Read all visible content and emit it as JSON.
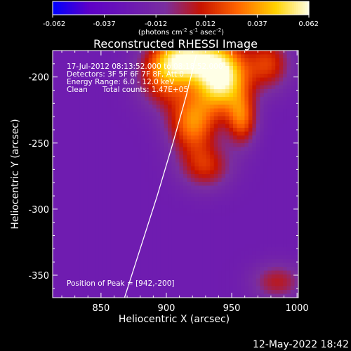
{
  "chart_data": {
    "type": "heatmap",
    "title": "Reconstructed RHESSI Image",
    "xlabel": "Heliocentric X (arcsec)",
    "ylabel": "Heliocentric Y (arcsec)",
    "xlim": [
      813,
      1001
    ],
    "ylim": [
      -367,
      -180
    ],
    "x_ticks": [
      850,
      900,
      950,
      1000
    ],
    "y_ticks": [
      -200,
      -250,
      -300,
      -350
    ],
    "grid": false,
    "colorbar": {
      "min": -0.062,
      "max": 0.062,
      "ticks": [
        "-0.062",
        "-0.037",
        "-0.012",
        "0.012",
        "0.037",
        "0.062"
      ],
      "tick_values": [
        -0.062,
        -0.037,
        -0.012,
        0.012,
        0.037,
        0.062
      ],
      "unit_label": "(photons cm^-2 s^-1 asec^-2)",
      "colormap": "rainbow-hot",
      "colors": [
        "#0000ff",
        "#5d00c8",
        "#7a2ea0",
        "#c81400",
        "#ff6400",
        "#ffd200",
        "#ffffe6"
      ]
    },
    "peak": {
      "x": 942,
      "y": -200,
      "value": 0.062
    },
    "sources": [
      {
        "x": 942,
        "y": -200,
        "peak": 0.062,
        "sx": 14,
        "sy": 18
      },
      {
        "x": 915,
        "y": -186,
        "peak": 0.045,
        "sx": 16,
        "sy": 12
      },
      {
        "x": 920,
        "y": -235,
        "peak": 0.03,
        "sx": 13,
        "sy": 16
      },
      {
        "x": 958,
        "y": -232,
        "peak": 0.022,
        "sx": 8,
        "sy": 14
      },
      {
        "x": 898,
        "y": -200,
        "peak": 0.02,
        "sx": 14,
        "sy": 16
      },
      {
        "x": 978,
        "y": -190,
        "peak": 0.016,
        "sx": 12,
        "sy": 14
      },
      {
        "x": 930,
        "y": -268,
        "peak": 0.012,
        "sx": 14,
        "sy": 12
      },
      {
        "x": 985,
        "y": -355,
        "peak": 0.006,
        "sx": 14,
        "sy": 10
      }
    ],
    "background_level": -0.022,
    "limb_curve": [
      {
        "x": 868,
        "y": -367
      },
      {
        "x": 880,
        "y": -330
      },
      {
        "x": 893,
        "y": -290
      },
      {
        "x": 905,
        "y": -250
      },
      {
        "x": 915,
        "y": -215
      },
      {
        "x": 923,
        "y": -183
      }
    ],
    "annotations": {
      "line1": "17-Jul-2012 08:13:52.000 to 08:18:52.000",
      "line2": "Detectors: 3F 5F 6F 7F 8F, Att 0",
      "line3": "Energy Range: 6.0 - 12.0 keV",
      "line4_left": "Clean",
      "line4_right": "Total counts: 1.47E+05",
      "peak_text": "Position of Peak = [942,-200]"
    },
    "footer_date": "12-May-2022 18:42"
  }
}
